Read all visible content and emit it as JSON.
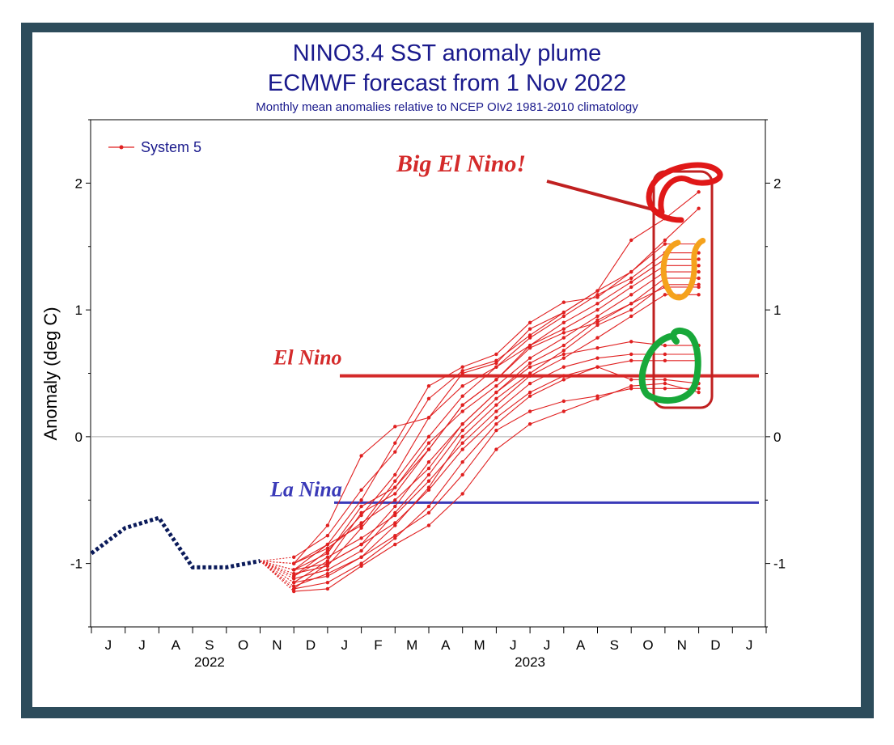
{
  "chart_data": {
    "type": "line",
    "title": "NINO3.4 SST anomaly plume",
    "subtitle": "ECMWF forecast from 1 Nov 2022",
    "caption": "Monthly mean anomalies relative to NCEP OIv2 1981-2010 climatology",
    "ylabel": "Anomaly (deg C)",
    "ylim": [
      -1.5,
      2.5
    ],
    "yticks": [
      "-1",
      "0",
      "1",
      "2"
    ],
    "xticks": [
      "J",
      "J",
      "A",
      "S",
      "O",
      "N",
      "D",
      "J",
      "F",
      "M",
      "A",
      "M",
      "J",
      "J",
      "A",
      "S",
      "O",
      "N",
      "D",
      "J"
    ],
    "year_labels": [
      "2022",
      "2023"
    ],
    "legend": {
      "label": "System 5",
      "position": "top-left"
    },
    "observed": {
      "months": [
        "2022-05",
        "2022-06",
        "2022-07",
        "2022-08",
        "2022-09",
        "2022-10"
      ],
      "values": [
        -0.92,
        -0.72,
        -0.64,
        -1.03,
        -1.03,
        -0.98
      ]
    },
    "forecast_months": [
      "2022-10",
      "2022-11",
      "2022-12",
      "2023-01",
      "2023-02",
      "2023-03",
      "2023-04",
      "2023-05",
      "2023-06",
      "2023-07",
      "2023-08",
      "2023-09",
      "2023-10",
      "2023-11"
    ],
    "ensemble": [
      [
        -0.98,
        -1.0,
        -0.7,
        -0.15,
        0.08,
        0.15,
        0.5,
        0.58,
        0.85,
        0.98,
        1.15,
        1.55,
        1.72,
        1.93
      ],
      [
        -0.98,
        -1.05,
        -0.85,
        -0.5,
        -0.05,
        0.4,
        0.55,
        0.65,
        0.9,
        1.06,
        1.1,
        1.3,
        1.55,
        1.8
      ],
      [
        -0.98,
        -0.95,
        -0.78,
        -0.42,
        -0.12,
        0.3,
        0.52,
        0.6,
        0.8,
        0.98,
        1.15,
        1.3,
        1.52,
        1.52
      ],
      [
        -0.98,
        -1.1,
        -0.9,
        -0.62,
        -0.3,
        0.15,
        0.4,
        0.55,
        0.78,
        0.95,
        1.12,
        1.25,
        1.45,
        1.45
      ],
      [
        -0.98,
        -1.0,
        -0.85,
        -0.7,
        -0.35,
        0.0,
        0.32,
        0.55,
        0.72,
        0.9,
        1.05,
        1.22,
        1.4,
        1.4
      ],
      [
        -0.98,
        -1.15,
        -0.98,
        -0.6,
        -0.45,
        -0.1,
        0.25,
        0.45,
        0.72,
        0.85,
        1.0,
        1.18,
        1.35,
        1.35
      ],
      [
        -0.98,
        -1.08,
        -1.02,
        -0.72,
        -0.4,
        -0.05,
        0.2,
        0.4,
        0.62,
        0.78,
        0.95,
        1.12,
        1.3,
        1.3
      ],
      [
        -0.98,
        -1.2,
        -1.0,
        -0.85,
        -0.55,
        -0.2,
        0.1,
        0.35,
        0.58,
        0.72,
        0.92,
        1.05,
        1.25,
        1.25
      ],
      [
        -0.98,
        -1.12,
        -1.05,
        -0.9,
        -0.6,
        -0.3,
        0.05,
        0.3,
        0.5,
        0.68,
        0.88,
        1.0,
        1.2,
        1.2
      ],
      [
        -0.98,
        -1.05,
        -0.92,
        -0.55,
        -0.4,
        -0.1,
        0.25,
        0.45,
        0.7,
        0.82,
        0.9,
        1.05,
        1.18,
        1.18
      ],
      [
        -0.98,
        -1.18,
        -1.08,
        -0.95,
        -0.7,
        -0.4,
        0.0,
        0.25,
        0.48,
        0.62,
        0.78,
        0.95,
        1.12,
        1.12
      ],
      [
        -0.98,
        -1.0,
        -0.88,
        -0.68,
        -0.5,
        -0.25,
        0.1,
        0.35,
        0.55,
        0.65,
        0.7,
        0.75,
        0.72,
        0.72
      ],
      [
        -0.98,
        -1.1,
        -0.95,
        -0.8,
        -0.62,
        -0.35,
        -0.05,
        0.2,
        0.42,
        0.55,
        0.62,
        0.65,
        0.65,
        0.65
      ],
      [
        -0.98,
        -1.2,
        -1.15,
        -1.0,
        -0.8,
        -0.55,
        -0.2,
        0.1,
        0.32,
        0.45,
        0.55,
        0.6,
        0.6,
        0.6
      ],
      [
        -0.98,
        -1.05,
        -1.0,
        -0.85,
        -0.68,
        -0.42,
        -0.1,
        0.15,
        0.35,
        0.48,
        0.55,
        0.45,
        0.45,
        0.42
      ],
      [
        -0.98,
        -1.15,
        -1.1,
        -0.95,
        -0.78,
        -0.6,
        -0.3,
        0.05,
        0.2,
        0.28,
        0.32,
        0.38,
        0.38,
        0.38
      ],
      [
        -0.98,
        -1.22,
        -1.2,
        -1.02,
        -0.85,
        -0.7,
        -0.45,
        -0.1,
        0.1,
        0.2,
        0.3,
        0.4,
        0.42,
        0.35
      ]
    ],
    "thresholds": [
      {
        "label": "El Nino",
        "value": 0.48,
        "color": "#d42a2a"
      },
      {
        "label": "La Nina",
        "value": -0.52,
        "color": "#3a3ab8"
      }
    ],
    "annotations": [
      {
        "text": "Big El Nino!",
        "color": "#d42a2a"
      }
    ],
    "colors": {
      "forecast": "#e02020",
      "observed": "#0a1a5a",
      "frame": "#2d4c5b",
      "title": "#1a1a8c"
    }
  }
}
